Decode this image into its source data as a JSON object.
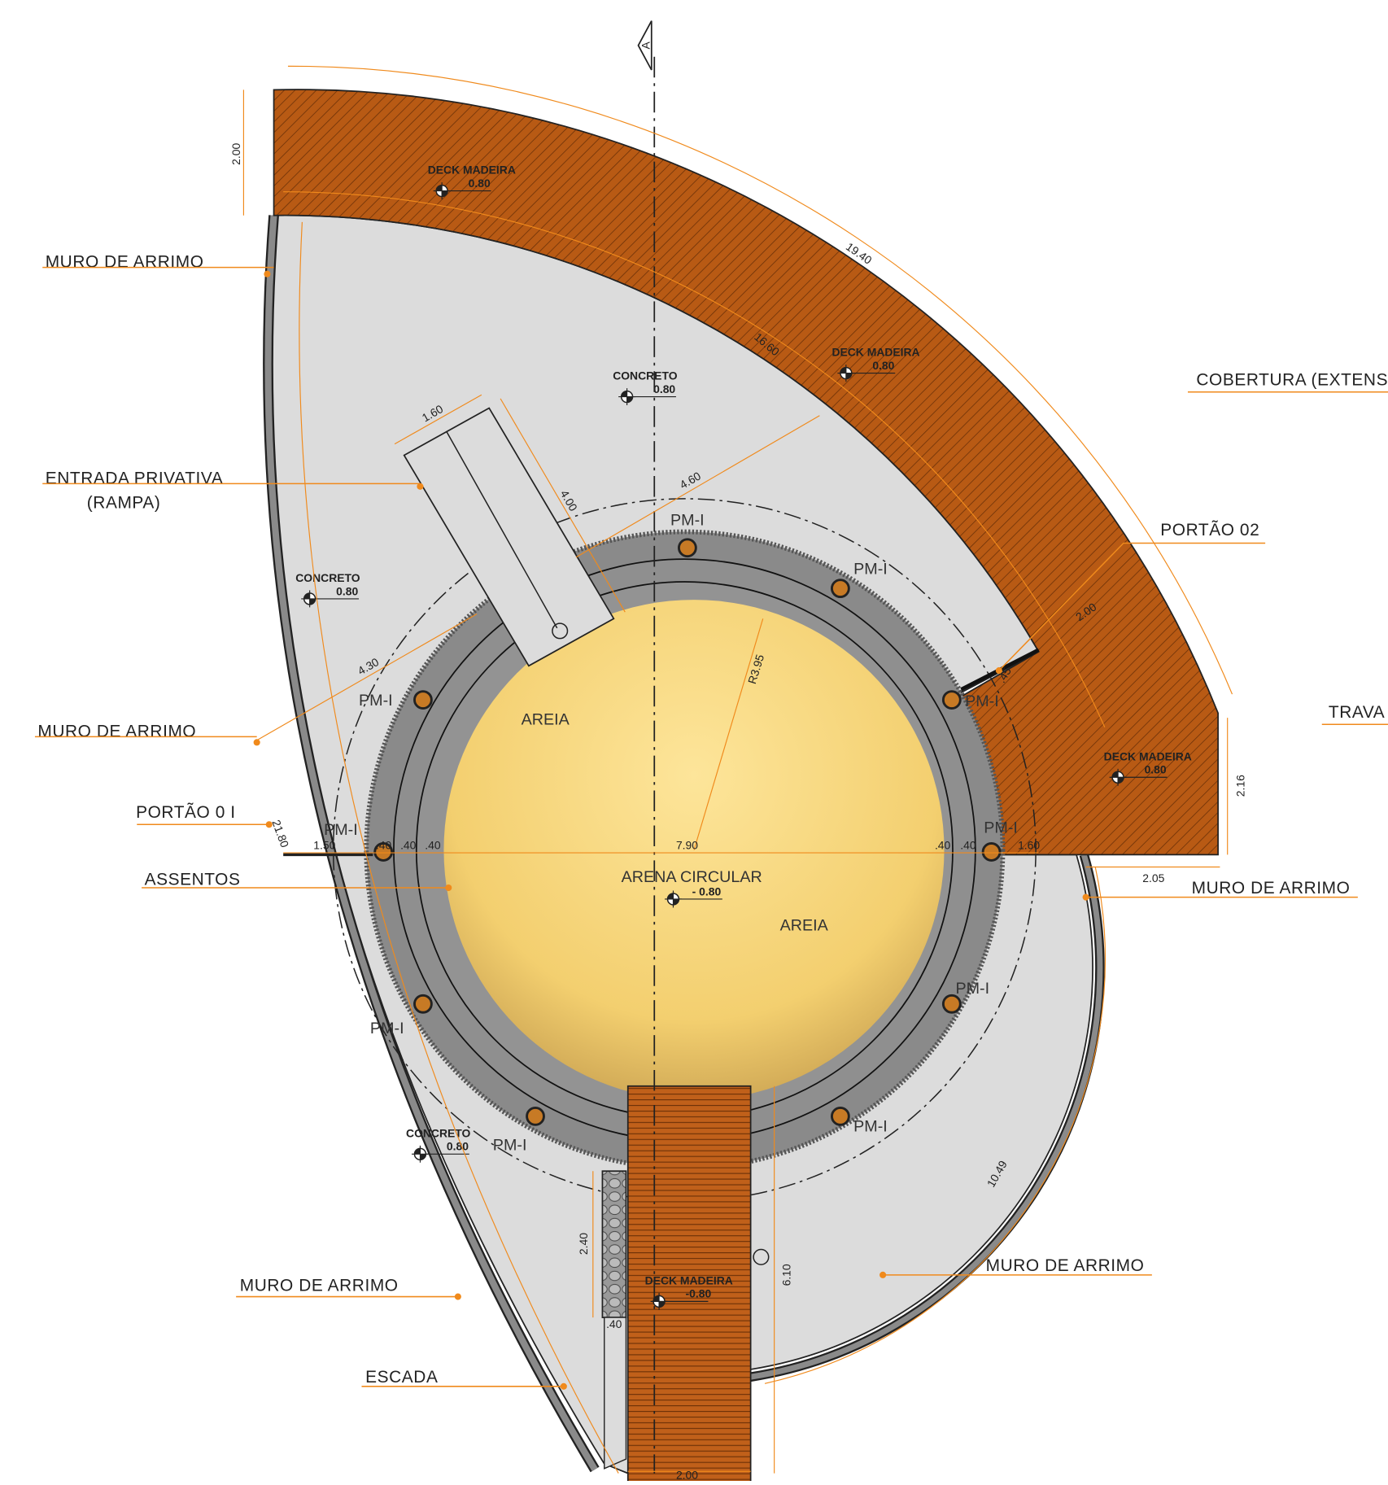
{
  "callouts": [
    "MURO DE ARRIMO",
    "ENTRADA PRIVATIVA",
    "(RAMPA)",
    "MURO DE ARRIMO",
    "PORTÃO 0 I",
    "ASSENTOS",
    "MURO DE ARRIMO",
    "ESCADA",
    "COBERTURA (EXTENSÃ",
    "PORTÃO 02",
    "TRAVA",
    "MURO DE ARRIMO",
    "MURO DE ARRIMO"
  ],
  "levels": [
    {
      "material": "DECK MADEIRA",
      "level": "0.80"
    },
    {
      "material": "DECK MADEIRA",
      "level": "0.80"
    },
    {
      "material": "CONCRETO",
      "level": "0.80"
    },
    {
      "material": "CONCRETO",
      "level": "0.80"
    },
    {
      "material": "DECK MADEIRA",
      "level": "0.80"
    },
    {
      "material": "ARENA CIRCULAR",
      "level": "- 0.80"
    },
    {
      "material": "CONCRETO",
      "level": "0.80"
    },
    {
      "material": "DECK MADEIRA",
      "level": "-0.80"
    }
  ],
  "areas": [
    "AREIA",
    "AREIA"
  ],
  "pillars": [
    "PM-I",
    "PM-I",
    "PM-I",
    "PM-I",
    "PM-I",
    "PM-I",
    "PM-I",
    "PM-I",
    "PM-I",
    "PM-I"
  ],
  "dimensions": [
    "2.00",
    "19.40",
    "16.60",
    "1.60",
    "4.00",
    "4.60",
    "4.30",
    "R3.95",
    "1.50",
    ".40",
    ".40",
    ".40",
    "7.90",
    ".40",
    ".40",
    "1.60",
    "21.80",
    "2.16",
    "2.05",
    ".45",
    "2.00",
    "10.49",
    "6.10",
    "2.40",
    ".40",
    "2.00"
  ],
  "section_marker": "A"
}
